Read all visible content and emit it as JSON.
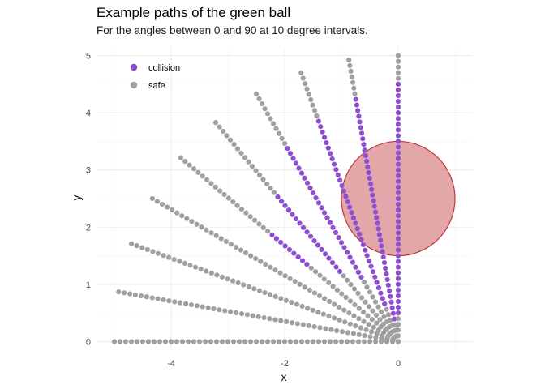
{
  "chart_data": {
    "type": "scatter",
    "title": "Example paths of the green ball",
    "subtitle": "For the angles between 0 and 90 at 10 degree intervals.",
    "xlabel": "x",
    "ylabel": "y",
    "xlim": [
      -5.3,
      1.3
    ],
    "ylim": [
      -0.15,
      5.15
    ],
    "x_ticks": [
      -4,
      -2,
      0
    ],
    "y_ticks": [
      0,
      1,
      2,
      3,
      4,
      5
    ],
    "grid": true,
    "legend": {
      "position": "top-left",
      "entries": [
        {
          "label": "collision",
          "color": "#8E4FD1"
        },
        {
          "label": "safe",
          "color": "#A0A0A0"
        }
      ]
    },
    "path_radius": 5,
    "angles_deg": [
      0,
      10,
      20,
      30,
      40,
      50,
      60,
      70,
      80,
      90
    ],
    "points_per_path": 50,
    "collision_point_ranges": [
      {
        "angle_deg": 0,
        "from": null,
        "to": null
      },
      {
        "angle_deg": 10,
        "from": null,
        "to": null
      },
      {
        "angle_deg": 20,
        "from": null,
        "to": null
      },
      {
        "angle_deg": 30,
        "from": null,
        "to": null
      },
      {
        "angle_deg": 40,
        "from": 0.42,
        "to": 0.58
      },
      {
        "angle_deg": 50,
        "from": 0.31,
        "to": 0.66
      },
      {
        "angle_deg": 60,
        "from": 0.26,
        "to": 0.78
      },
      {
        "angle_deg": 70,
        "from": 0.14,
        "to": 0.83
      },
      {
        "angle_deg": 80,
        "from": 0.08,
        "to": 0.86
      },
      {
        "angle_deg": 90,
        "from": 0.1,
        "to": 0.9
      }
    ],
    "obstacle": {
      "center": [
        0,
        2.5
      ],
      "radius": 1,
      "fill": "#D9888C",
      "stroke": "#C0393E"
    },
    "colors": {
      "collision": "#8E4FD1",
      "safe": "#A0A0A0"
    }
  }
}
